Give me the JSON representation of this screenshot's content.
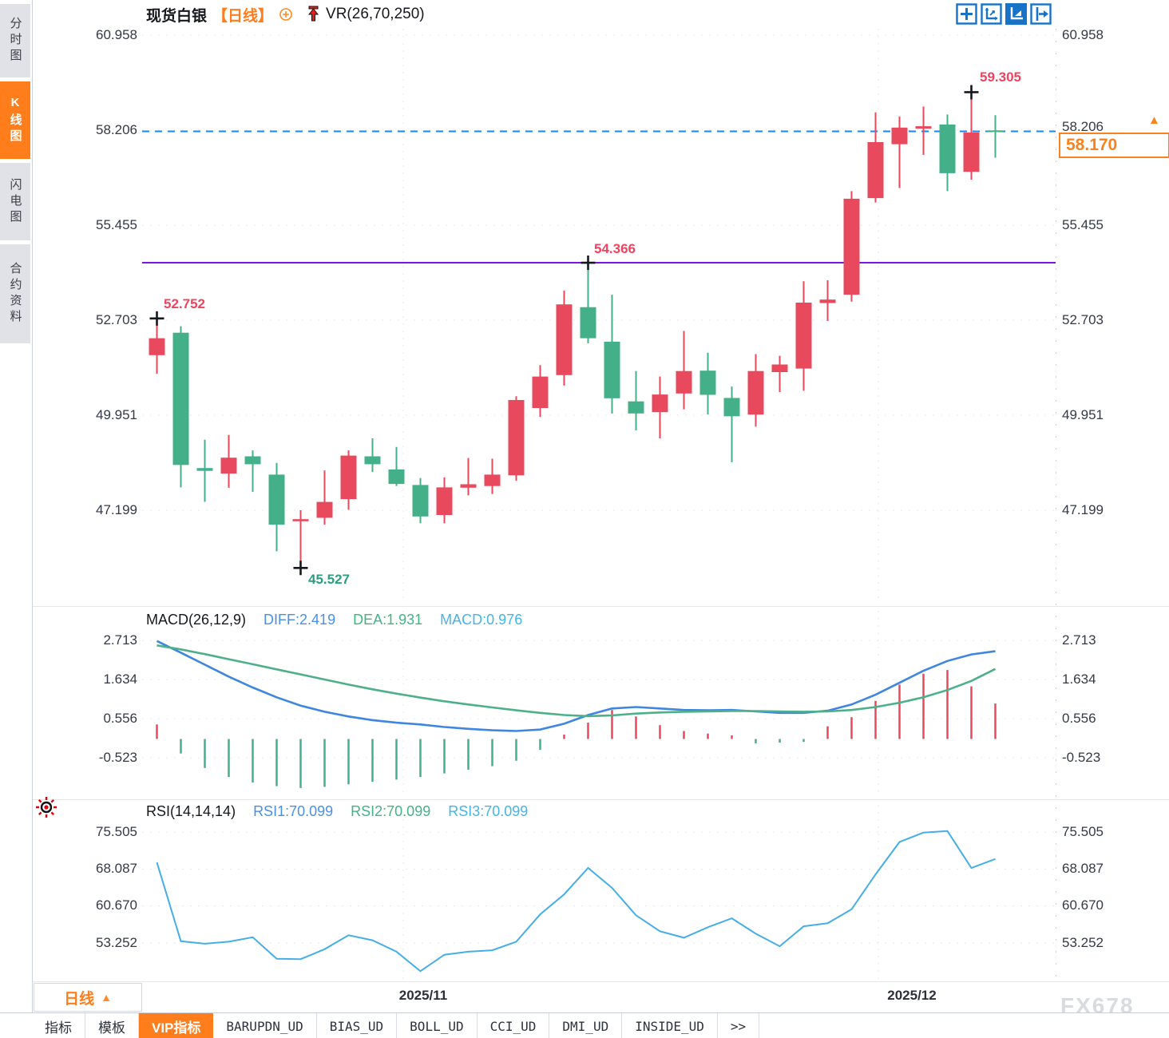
{
  "header": {
    "symbol": "现货白银",
    "period_tag": "【日线】",
    "indicator": "VR(26,70,250)"
  },
  "sidebar": {
    "items": [
      {
        "label": "分时图",
        "active": false
      },
      {
        "label": "K线图",
        "active": true
      },
      {
        "label": "闪电图",
        "active": false
      },
      {
        "label": "合约资料",
        "active": false
      }
    ]
  },
  "toolbar": {
    "icons": [
      "crosshair",
      "zoom-axes",
      "auto-scale",
      "pan-to-latest"
    ]
  },
  "price_panel": {
    "current_price": "58.170",
    "annotations": [
      {
        "text": "52.752",
        "color": "red"
      },
      {
        "text": "45.527",
        "color": "green"
      },
      {
        "text": "54.366",
        "color": "red"
      },
      {
        "text": "59.305",
        "color": "red"
      }
    ]
  },
  "macd_panel": {
    "title": "MACD(26,12,9)",
    "diff_label": "DIFF:2.419",
    "dea_label": "DEA:1.931",
    "macd_label": "MACD:0.976"
  },
  "rsi_panel": {
    "title": "RSI(14,14,14)",
    "rsi1_label": "RSI1:70.099",
    "rsi2_label": "RSI2:70.099",
    "rsi3_label": "RSI3:70.099"
  },
  "xaxis": {
    "labels": [
      "2025/11",
      "2025/12"
    ],
    "period_selector": "日线"
  },
  "watermark": "FX678",
  "bottom_tabs": {
    "items": [
      {
        "label": "指标",
        "active": false
      },
      {
        "label": "模板",
        "active": false
      },
      {
        "label": "VIP指标",
        "active": true
      },
      {
        "label": "BARUPDN_UD",
        "active": false
      },
      {
        "label": "BIAS_UD",
        "active": false
      },
      {
        "label": "BOLL_UD",
        "active": false
      },
      {
        "label": "CCI_UD",
        "active": false
      },
      {
        "label": "DMI_UD",
        "active": false
      },
      {
        "label": "INSIDE_UD",
        "active": false
      },
      {
        "label": ">>",
        "active": false
      }
    ]
  },
  "colors": {
    "up": "#e9495d",
    "down": "#44b089",
    "diff_line": "#3f86e0",
    "dea_line": "#4db08a",
    "rsi_line": "#45aee6",
    "purple_line": "#7b16e2",
    "dashed_blue": "#1d86ea",
    "grid": "#e8eaee",
    "cross": "#15181d",
    "accent_orange": "#ff7d1a",
    "toolbar_blue": "#1673c7"
  },
  "chart_data": [
    {
      "type": "candlestick",
      "title": "现货白银 日线",
      "ytick_labels": [
        "60.958",
        "58.206",
        "55.455",
        "52.703",
        "49.951",
        "47.199"
      ],
      "yticks": [
        60.958,
        58.206,
        55.455,
        52.703,
        49.951,
        47.199
      ],
      "ylim": [
        45.1,
        61.4
      ],
      "x_month_labels": [
        "2025/11",
        "2025/12"
      ],
      "candles": [
        [
          51.69,
          52.752,
          51.15,
          52.18
        ],
        [
          52.34,
          52.53,
          47.86,
          48.51
        ],
        [
          48.42,
          49.24,
          47.44,
          48.34
        ],
        [
          48.26,
          49.38,
          47.85,
          48.72
        ],
        [
          48.76,
          48.93,
          47.73,
          48.53
        ],
        [
          48.23,
          48.57,
          46.01,
          46.78
        ],
        [
          46.88,
          47.2,
          45.527,
          46.94
        ],
        [
          46.98,
          48.35,
          46.78,
          47.44
        ],
        [
          47.52,
          48.93,
          47.21,
          48.78
        ],
        [
          48.76,
          49.28,
          48.31,
          48.53
        ],
        [
          48.38,
          49.03,
          47.9,
          47.96
        ],
        [
          47.93,
          48.13,
          46.82,
          47.02
        ],
        [
          47.06,
          48.15,
          46.82,
          47.86
        ],
        [
          47.85,
          48.71,
          47.63,
          47.95
        ],
        [
          47.9,
          48.69,
          47.67,
          48.23
        ],
        [
          48.21,
          50.5,
          48.05,
          50.39
        ],
        [
          50.16,
          51.4,
          49.9,
          51.07
        ],
        [
          51.11,
          53.56,
          50.81,
          53.16
        ],
        [
          53.08,
          54.366,
          52.03,
          52.18
        ],
        [
          52.08,
          53.44,
          50.0,
          50.44
        ],
        [
          50.35,
          51.23,
          49.51,
          50.0
        ],
        [
          50.04,
          51.07,
          49.28,
          50.55
        ],
        [
          50.58,
          52.39,
          50.12,
          51.23
        ],
        [
          51.24,
          51.76,
          49.97,
          50.54
        ],
        [
          50.45,
          50.78,
          48.59,
          49.92
        ],
        [
          49.97,
          51.72,
          49.62,
          51.23
        ],
        [
          51.2,
          51.67,
          50.62,
          51.42
        ],
        [
          51.3,
          53.83,
          50.66,
          53.21
        ],
        [
          53.2,
          53.86,
          52.68,
          53.3
        ],
        [
          53.44,
          56.44,
          53.24,
          56.22
        ],
        [
          56.24,
          58.72,
          56.11,
          57.86
        ],
        [
          57.8,
          58.6,
          56.53,
          58.28
        ],
        [
          58.25,
          58.89,
          57.49,
          58.32
        ],
        [
          58.37,
          58.66,
          56.44,
          56.96
        ],
        [
          57.0,
          59.305,
          56.77,
          58.14
        ],
        [
          58.2,
          58.64,
          57.41,
          58.17
        ]
      ],
      "annotations": [
        {
          "index": 0,
          "field": "high",
          "label": "52.752"
        },
        {
          "index": 6,
          "field": "low",
          "label": "45.527"
        },
        {
          "index": 18,
          "field": "high",
          "label": "54.366"
        },
        {
          "index": 34,
          "field": "high",
          "label": "59.305"
        }
      ],
      "hlines": [
        {
          "value": 54.366,
          "style": "solid",
          "color_key": "purple_line"
        },
        {
          "value": 58.17,
          "style": "dashed",
          "color_key": "dashed_blue"
        }
      ],
      "last_price": 58.17
    },
    {
      "type": "macd",
      "params": "(26,12,9)",
      "ytick_labels": [
        "2.713",
        "1.634",
        "0.556",
        "-0.523"
      ],
      "yticks": [
        2.713,
        1.634,
        0.556,
        -0.523
      ],
      "diff": [
        2.7,
        2.38,
        2.05,
        1.72,
        1.42,
        1.15,
        0.92,
        0.75,
        0.62,
        0.52,
        0.45,
        0.4,
        0.33,
        0.28,
        0.24,
        0.22,
        0.26,
        0.42,
        0.66,
        0.84,
        0.88,
        0.84,
        0.8,
        0.79,
        0.8,
        0.76,
        0.72,
        0.72,
        0.78,
        0.95,
        1.22,
        1.55,
        1.88,
        2.15,
        2.33,
        2.419
      ],
      "dea": [
        2.58,
        2.47,
        2.34,
        2.2,
        2.06,
        1.92,
        1.78,
        1.64,
        1.5,
        1.37,
        1.25,
        1.14,
        1.04,
        0.95,
        0.87,
        0.79,
        0.72,
        0.66,
        0.63,
        0.65,
        0.7,
        0.73,
        0.75,
        0.76,
        0.77,
        0.77,
        0.76,
        0.75,
        0.76,
        0.8,
        0.88,
        1.0,
        1.15,
        1.35,
        1.6,
        1.931
      ],
      "hist": [
        0.4,
        -0.4,
        -0.8,
        -1.05,
        -1.2,
        -1.3,
        -1.35,
        -1.32,
        -1.25,
        -1.18,
        -1.12,
        -1.05,
        -0.95,
        -0.85,
        -0.75,
        -0.6,
        -0.3,
        0.12,
        0.45,
        0.8,
        0.62,
        0.38,
        0.22,
        0.15,
        0.1,
        -0.12,
        -0.1,
        -0.08,
        0.35,
        0.6,
        1.05,
        1.5,
        1.8,
        1.9,
        1.45,
        0.976
      ]
    },
    {
      "type": "line",
      "name": "RSI",
      "params": "(14,14,14)",
      "ytick_labels": [
        "75.505",
        "68.087",
        "60.670",
        "53.252"
      ],
      "yticks": [
        75.505,
        68.087,
        60.67,
        53.252
      ],
      "values": [
        69.4,
        53.6,
        53.1,
        53.5,
        54.4,
        50.1,
        50.0,
        52.0,
        54.8,
        53.8,
        51.5,
        47.6,
        50.9,
        51.5,
        51.8,
        53.5,
        59.0,
        63.0,
        68.3,
        64.3,
        58.8,
        55.6,
        54.3,
        56.4,
        58.2,
        55.1,
        52.6,
        56.6,
        57.2,
        60.0,
        67.0,
        73.5,
        75.4,
        75.7,
        68.3,
        70.099
      ]
    }
  ]
}
